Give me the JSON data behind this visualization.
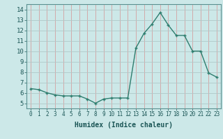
{
  "x": [
    0,
    1,
    2,
    3,
    4,
    5,
    6,
    7,
    8,
    9,
    10,
    11,
    12,
    13,
    14,
    15,
    16,
    17,
    18,
    19,
    20,
    21,
    22,
    23
  ],
  "y": [
    6.4,
    6.3,
    6.0,
    5.8,
    5.7,
    5.7,
    5.7,
    5.4,
    5.0,
    5.4,
    5.5,
    5.5,
    5.5,
    10.3,
    11.7,
    12.6,
    13.7,
    12.5,
    11.5,
    11.5,
    10.0,
    10.0,
    7.9,
    7.5
  ],
  "line_color": "#2e7d6e",
  "marker": "+",
  "marker_size": 3,
  "marker_lw": 1.0,
  "bg_color": "#cce8e8",
  "grid_color": "#b0d4d4",
  "xlabel": "Humidex (Indice chaleur)",
  "xlabel_fontsize": 7,
  "xlim": [
    -0.5,
    23.5
  ],
  "ylim": [
    4.5,
    14.5
  ],
  "yticks": [
    5,
    6,
    7,
    8,
    9,
    10,
    11,
    12,
    13,
    14
  ],
  "xticks": [
    0,
    1,
    2,
    3,
    4,
    5,
    6,
    7,
    8,
    9,
    10,
    11,
    12,
    13,
    14,
    15,
    16,
    17,
    18,
    19,
    20,
    21,
    22,
    23
  ],
  "xtick_labels": [
    "0",
    "1",
    "2",
    "3",
    "4",
    "5",
    "6",
    "7",
    "8",
    "9",
    "10",
    "11",
    "12",
    "13",
    "14",
    "15",
    "16",
    "17",
    "18",
    "19",
    "20",
    "21",
    "22",
    "23"
  ],
  "tick_fontsize": 5.5,
  "ytick_fontsize": 6.5,
  "line_width": 1.0
}
